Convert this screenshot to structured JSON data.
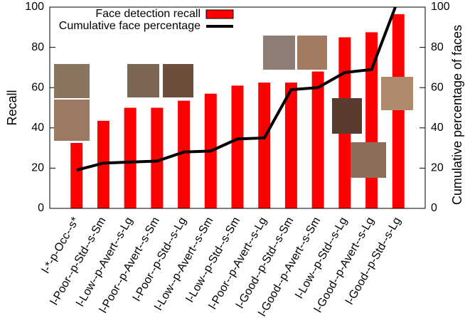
{
  "chart_data": {
    "type": "bar",
    "categories": [
      "l-*-p-Occ--s*",
      "l-Poor--p-Std--s-Sm",
      "l-Low--p-Avert--s-Lg",
      "l-Poor--p-Avert--s-Sm",
      "l-Poor--p-Std--s-Lg",
      "l-Low--p-Avert--s-Sm",
      "l-Low--p-Std--s-Sm",
      "l-Poor--p-Avert--s-Lg",
      "l-Good--p-Std--s-Sm",
      "l-Good--p-Avert--s-Sm",
      "l-Low--p-Std--s-Lg",
      "l-Good--p-Avert--s-Lg",
      "l-Good--p-Std--s-Lg"
    ],
    "series": [
      {
        "name": "Face detection recall",
        "type": "bar",
        "color": "#ff0000",
        "values": [
          32.5,
          43.5,
          50,
          50,
          53.5,
          57,
          61,
          62.5,
          62.5,
          68,
          85,
          87.5,
          96.5
        ]
      },
      {
        "name": "Cumulative face percentage",
        "type": "line",
        "axis": "y2",
        "color": "#000000",
        "values": [
          19,
          22.5,
          23,
          23.5,
          28,
          28.5,
          34.5,
          35,
          59,
          60,
          67.5,
          69,
          104
        ]
      }
    ],
    "ylabel": "Recall",
    "y2label": "Cumulative percentage of faces",
    "ylim": [
      0,
      100
    ],
    "yticks": [
      0,
      20,
      40,
      60,
      80,
      100
    ],
    "y2lim": [
      0,
      100
    ],
    "y2ticks": [
      0,
      20,
      40,
      60,
      80,
      100
    ],
    "legend": "top"
  }
}
